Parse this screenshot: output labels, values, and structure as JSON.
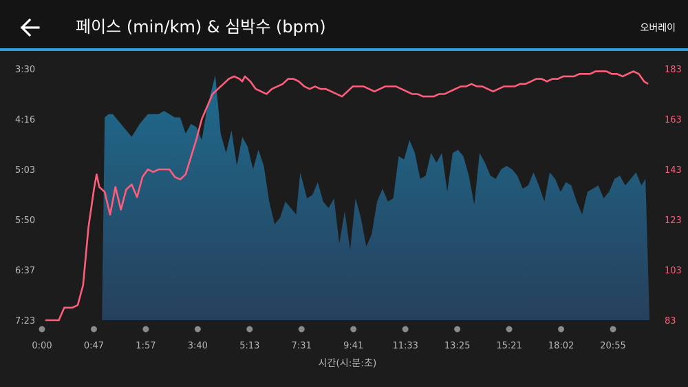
{
  "header": {
    "title": "페이스 (min/km) & 심박수 (bpm)",
    "overlay_label": "오버레이"
  },
  "colors": {
    "background": "#1c1c1c",
    "header_bg": "#141414",
    "accent": "#2f9fe0",
    "pace_fill_top": "#1f6b8e",
    "pace_fill_bottom": "#26405c",
    "heart_rate": "#ff5d7c"
  },
  "chart_data": {
    "type": "area",
    "xlabel": "시간(시:분:초)",
    "x_ticks": [
      "0:00",
      "0:47",
      "1:57",
      "3:40",
      "5:13",
      "7:31",
      "9:41",
      "11:33",
      "13:25",
      "15:21",
      "18:02",
      "20:55"
    ],
    "x_range": [
      0,
      22.6
    ],
    "left_axis": {
      "label": "",
      "ticks": [
        "3:30",
        "4:16",
        "5:03",
        "5:50",
        "6:37",
        "7:23"
      ],
      "range_min_per_km": [
        3.5,
        7.383
      ],
      "inverted": true
    },
    "right_axis": {
      "label": "",
      "ticks": [
        "183",
        "163",
        "143",
        "123",
        "103",
        "83"
      ],
      "range_bpm": [
        83,
        183
      ]
    },
    "series": [
      {
        "kind": "area",
        "axis": "left",
        "x": [
          2.2,
          2.3,
          2.45,
          2.6,
          2.9,
          3.3,
          3.6,
          3.9,
          4.3,
          4.5,
          4.7,
          4.9,
          5.1,
          5.3,
          5.5,
          5.7,
          5.9,
          6.1,
          6.4,
          6.6,
          6.8,
          7.0,
          7.2,
          7.4,
          7.6,
          7.8,
          8.0,
          8.2,
          8.4,
          8.6,
          8.8,
          9.0,
          9.2,
          9.4,
          9.55,
          9.8,
          10.0,
          10.2,
          10.4,
          10.6,
          10.8,
          11.0,
          11.2,
          11.4,
          11.6,
          11.8,
          12.0,
          12.2,
          12.4,
          12.6,
          12.8,
          13.0,
          13.2,
          13.4,
          13.6,
          13.8,
          14.0,
          14.2,
          14.4,
          14.6,
          14.8,
          15.0,
          15.2,
          15.4,
          15.6,
          15.8,
          16.0,
          16.2,
          16.4,
          16.6,
          16.8,
          17.0,
          17.2,
          17.4,
          17.6,
          17.8,
          18.0,
          18.2,
          18.4,
          18.6,
          18.8,
          19.0,
          19.2,
          19.4,
          19.6,
          19.8,
          20.0,
          20.2,
          20.4,
          20.6,
          20.8,
          21.0,
          21.2,
          21.4,
          21.6,
          21.8,
          22.0,
          22.2,
          22.35,
          22.5
        ],
        "values": [
          7.38,
          4.25,
          4.2,
          4.2,
          4.35,
          4.55,
          4.35,
          4.2,
          4.2,
          4.15,
          4.2,
          4.25,
          4.25,
          4.5,
          4.35,
          4.4,
          4.6,
          4.1,
          3.6,
          4.5,
          4.8,
          4.45,
          5.0,
          4.55,
          4.7,
          5.05,
          4.75,
          5.0,
          5.55,
          5.9,
          5.8,
          5.55,
          5.65,
          5.75,
          5.1,
          5.5,
          5.45,
          5.25,
          5.55,
          5.65,
          5.5,
          6.2,
          5.7,
          6.3,
          5.5,
          5.8,
          6.25,
          6.05,
          5.55,
          5.35,
          5.55,
          5.5,
          4.85,
          4.9,
          4.6,
          4.8,
          5.2,
          5.15,
          4.8,
          4.95,
          4.8,
          5.4,
          4.8,
          4.75,
          4.85,
          5.15,
          5.6,
          4.8,
          4.95,
          5.15,
          5.2,
          5.05,
          5.0,
          5.05,
          5.15,
          5.35,
          5.3,
          5.1,
          5.3,
          5.55,
          5.1,
          5.2,
          5.4,
          5.25,
          5.3,
          5.55,
          5.75,
          5.4,
          5.35,
          5.3,
          5.5,
          5.4,
          5.2,
          5.15,
          5.3,
          5.2,
          5.1,
          5.3,
          5.2,
          7.38
        ]
      },
      {
        "kind": "line",
        "axis": "right",
        "x": [
          0.1,
          0.4,
          0.6,
          0.8,
          1.0,
          1.1,
          1.3,
          1.5,
          1.7,
          1.9,
          2.0,
          2.1,
          2.3,
          2.5,
          2.7,
          2.9,
          3.1,
          3.3,
          3.5,
          3.7,
          3.9,
          4.1,
          4.3,
          4.5,
          4.7,
          4.9,
          5.1,
          5.3,
          5.5,
          5.7,
          5.9,
          6.1,
          6.3,
          6.5,
          6.7,
          6.9,
          7.1,
          7.3,
          7.4,
          7.5,
          7.7,
          7.9,
          8.1,
          8.3,
          8.5,
          8.7,
          8.9,
          9.1,
          9.3,
          9.5,
          9.7,
          9.9,
          10.1,
          10.3,
          10.5,
          10.7,
          10.9,
          11.1,
          11.3,
          11.5,
          11.7,
          11.9,
          12.1,
          12.3,
          12.5,
          12.7,
          12.9,
          13.1,
          13.3,
          13.5,
          13.7,
          13.9,
          14.1,
          14.3,
          14.5,
          14.7,
          14.9,
          15.1,
          15.3,
          15.5,
          15.7,
          15.9,
          16.1,
          16.3,
          16.5,
          16.7,
          16.9,
          17.1,
          17.3,
          17.5,
          17.7,
          17.9,
          18.1,
          18.3,
          18.5,
          18.7,
          18.9,
          19.1,
          19.3,
          19.5,
          19.7,
          19.9,
          20.1,
          20.3,
          20.5,
          20.7,
          20.9,
          21.1,
          21.3,
          21.5,
          21.7,
          21.9,
          22.1,
          22.3,
          22.45
        ],
        "values": [
          83,
          83,
          83,
          88,
          88,
          88,
          89,
          97,
          120,
          135,
          141,
          136,
          134,
          125,
          136,
          127,
          135,
          137,
          132,
          140,
          143,
          142,
          143,
          143,
          143,
          140,
          139,
          141,
          148,
          155,
          163,
          168,
          173,
          175,
          177,
          179,
          180,
          179,
          178,
          180,
          178,
          175,
          174,
          173,
          175,
          176,
          177,
          179,
          179,
          178,
          176,
          175,
          176,
          175,
          175,
          174,
          173,
          172,
          174,
          176,
          176,
          176,
          175,
          174,
          175,
          176,
          176,
          176,
          175,
          174,
          173,
          173,
          172,
          172,
          172,
          173,
          173,
          174,
          175,
          176,
          176,
          177,
          176,
          176,
          175,
          174,
          175,
          176,
          176,
          176,
          177,
          177,
          178,
          179,
          179,
          178,
          179,
          179,
          180,
          180,
          180,
          181,
          181,
          181,
          182,
          182,
          182,
          181,
          181,
          180,
          181,
          182,
          181,
          178,
          177
        ]
      }
    ]
  }
}
